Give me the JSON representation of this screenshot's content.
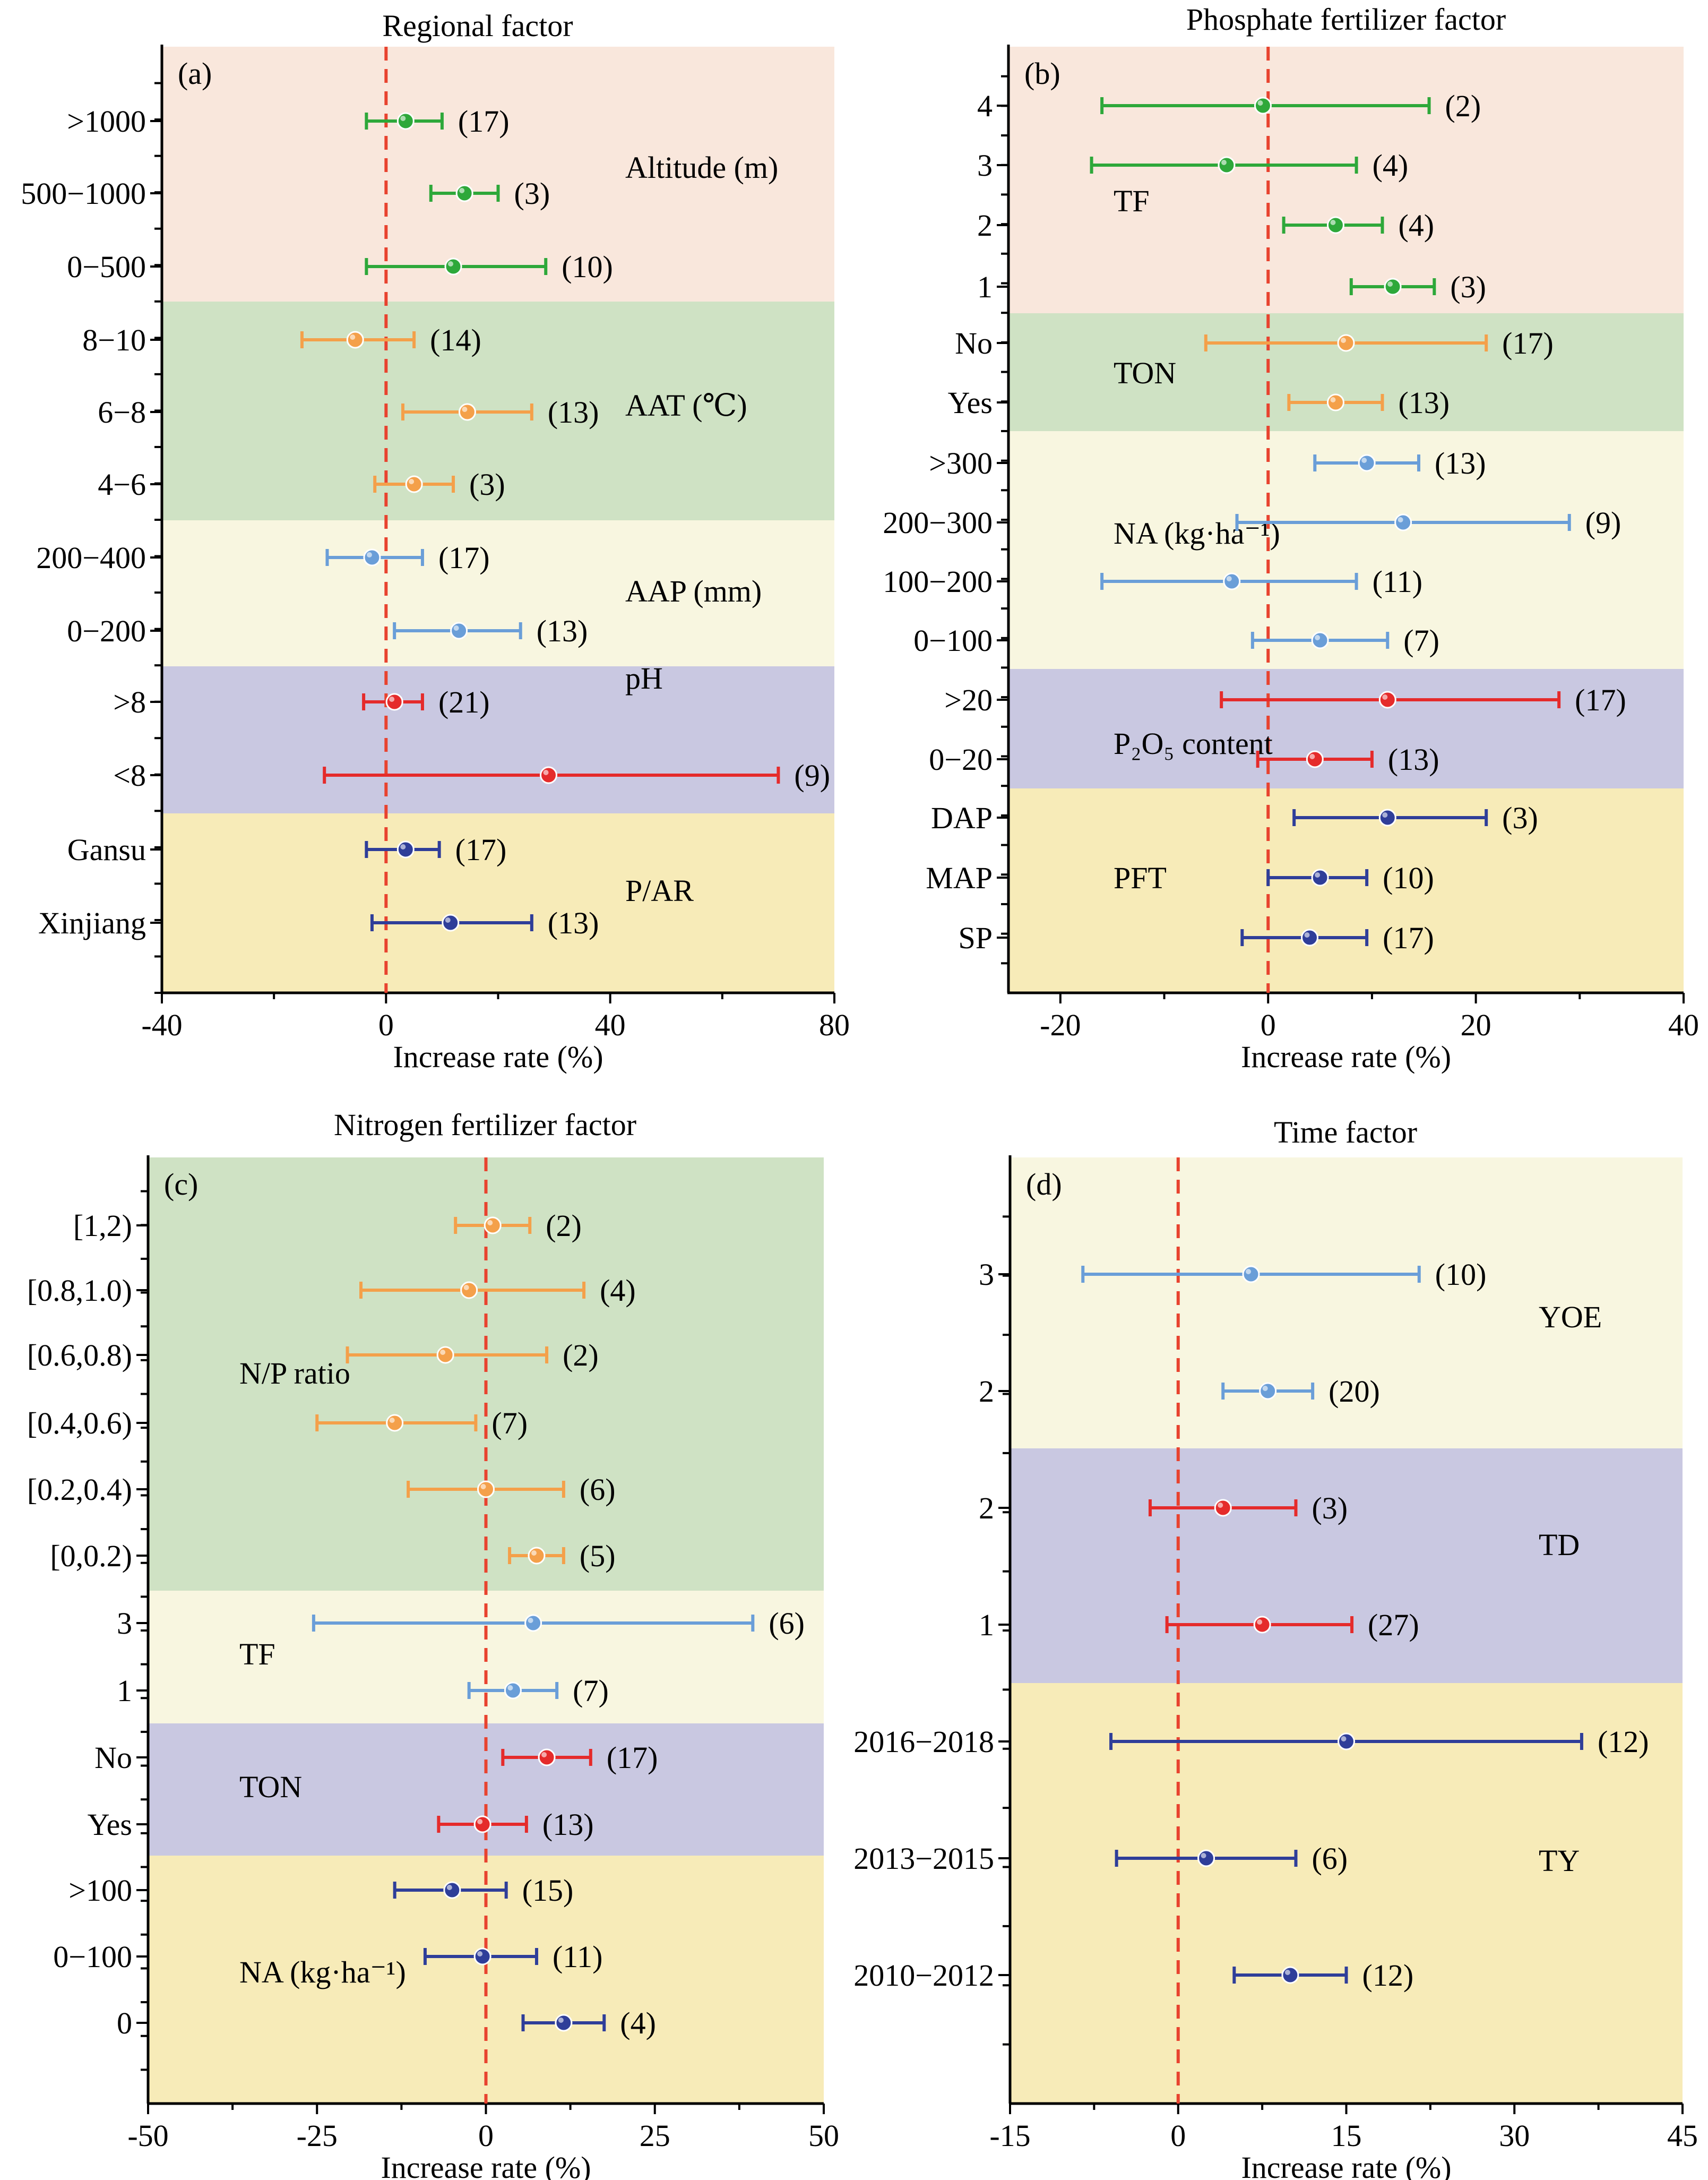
{
  "chart_data": [
    {
      "id": "a",
      "type": "forest",
      "title": "Regional factor",
      "panel_label": "(a)",
      "xlabel": "Increase rate (%)",
      "xlim": [
        -40,
        80
      ],
      "xticks": [
        "-40",
        "0",
        "40",
        "80"
      ],
      "xtick_values": [
        -40,
        0,
        40,
        80
      ],
      "groups": [
        {
          "name": "Altitude (m)",
          "band": "#f9e7dc",
          "color": "#2ea83a",
          "items": [
            {
              "label": ">1000",
              "mean": 3.5,
              "lo": -3.5,
              "hi": 10,
              "n": "(17)"
            },
            {
              "label": "500−1000",
              "mean": 14,
              "lo": 8,
              "hi": 20,
              "n": "(3)"
            },
            {
              "label": "0−500",
              "mean": 12,
              "lo": -3.5,
              "hi": 28.5,
              "n": "(10)"
            }
          ]
        },
        {
          "name": "AAT (℃)",
          "band": "#cfe2c4",
          "color": "#f4a04a",
          "items": [
            {
              "label": "8−10",
              "mean": -5.5,
              "lo": -15,
              "hi": 5,
              "n": "(14)"
            },
            {
              "label": "6−8",
              "mean": 14.5,
              "lo": 3,
              "hi": 26,
              "n": "(13)"
            },
            {
              "label": "4−6",
              "mean": 5,
              "lo": -2,
              "hi": 12,
              "n": "(3)"
            }
          ]
        },
        {
          "name": "AAP (mm)",
          "band": "#f8f6e0",
          "color": "#6a9ed8",
          "items": [
            {
              "label": "200−400",
              "mean": -2.5,
              "lo": -10.5,
              "hi": 6.5,
              "n": "(17)"
            },
            {
              "label": "0−200",
              "mean": 13,
              "lo": 1.5,
              "hi": 24,
              "n": "(13)"
            }
          ]
        },
        {
          "name": "pH",
          "band": "#c9c8e1",
          "color": "#e52b2b",
          "items": [
            {
              "label": ">8",
              "mean": 1.5,
              "lo": -4,
              "hi": 6.5,
              "n": "(21)"
            },
            {
              "label": "<8",
              "mean": 29,
              "lo": -11,
              "hi": 70,
              "n": "(9)"
            }
          ]
        },
        {
          "name": "P/AR",
          "band": "#f7ebb8",
          "color": "#2f3e99",
          "items": [
            {
              "label": "Gansu",
              "mean": 3.5,
              "lo": -3.5,
              "hi": 9.5,
              "n": "(17)"
            },
            {
              "label": "Xinjiang",
              "mean": 11.5,
              "lo": -2.5,
              "hi": 26,
              "n": "(13)"
            }
          ]
        }
      ]
    },
    {
      "id": "b",
      "type": "forest",
      "title": "Phosphate fertilizer factor",
      "panel_label": "(b)",
      "xlabel": "Increase rate (%)",
      "xlim": [
        -25,
        40
      ],
      "xticks": [
        "-20",
        "0",
        "20",
        "40"
      ],
      "xtick_values": [
        -20,
        0,
        20,
        40
      ],
      "groups": [
        {
          "name": "TF",
          "band": "#f9e7dc",
          "color": "#2ea83a",
          "items": [
            {
              "label": "4",
              "mean": -0.5,
              "lo": -16,
              "hi": 15.5,
              "n": "(2)"
            },
            {
              "label": "3",
              "mean": -4,
              "lo": -17,
              "hi": 8.5,
              "n": "(4)"
            },
            {
              "label": "2",
              "mean": 6.5,
              "lo": 1.5,
              "hi": 11,
              "n": "(4)"
            },
            {
              "label": "1",
              "mean": 12,
              "lo": 8,
              "hi": 16,
              "n": "(3)"
            }
          ]
        },
        {
          "name": "TON",
          "band": "#cfe2c4",
          "color": "#f4a04a",
          "items": [
            {
              "label": "No",
              "mean": 7.5,
              "lo": -6,
              "hi": 21,
              "n": "(17)"
            },
            {
              "label": "Yes",
              "mean": 6.5,
              "lo": 2,
              "hi": 11,
              "n": "(13)"
            }
          ]
        },
        {
          "name": "NA (kg·ha⁻¹)",
          "band": "#f8f6e0",
          "color": "#6a9ed8",
          "items": [
            {
              "label": ">300",
              "mean": 9.5,
              "lo": 4.5,
              "hi": 14.5,
              "n": "(13)"
            },
            {
              "label": "200−300",
              "mean": 13,
              "lo": -3,
              "hi": 29,
              "n": "(9)"
            },
            {
              "label": "100−200",
              "mean": -3.5,
              "lo": -16,
              "hi": 8.5,
              "n": "(11)"
            },
            {
              "label": "0−100",
              "mean": 5,
              "lo": -1.5,
              "hi": 11.5,
              "n": "(7)"
            }
          ]
        },
        {
          "name": "P₂O₅ content",
          "band": "#c9c8e1",
          "color": "#e52b2b",
          "items": [
            {
              "label": ">20",
              "mean": 11.5,
              "lo": -4.5,
              "hi": 28,
              "n": "(17)"
            },
            {
              "label": "0−20",
              "mean": 4.5,
              "lo": -1,
              "hi": 10,
              "n": "(13)"
            }
          ]
        },
        {
          "name": "PFT",
          "band": "#f7ebb8",
          "color": "#2f3e99",
          "items": [
            {
              "label": "DAP",
              "mean": 11.5,
              "lo": 2.5,
              "hi": 21,
              "n": "(3)"
            },
            {
              "label": "MAP",
              "mean": 5,
              "lo": 0,
              "hi": 9.5,
              "n": "(10)"
            },
            {
              "label": "SP",
              "mean": 4,
              "lo": -2.5,
              "hi": 9.5,
              "n": "(17)"
            }
          ]
        }
      ]
    },
    {
      "id": "c",
      "type": "forest",
      "title": "Nitrogen fertilizer factor",
      "panel_label": "(c)",
      "xlabel": "Increase rate (%)",
      "xlim": [
        -50,
        50
      ],
      "xticks": [
        "-50",
        "-25",
        "0",
        "25",
        "50"
      ],
      "xtick_values": [
        -50,
        -25,
        0,
        25,
        50
      ],
      "groups": [
        {
          "name": "N/P ratio",
          "band": "#cfe2c4",
          "color": "#f4a04a",
          "items": [
            {
              "label": "[1,2)",
              "mean": 1,
              "lo": -4.5,
              "hi": 6.5,
              "n": "(2)"
            },
            {
              "label": "[0.8,1.0)",
              "mean": -2.5,
              "lo": -18.5,
              "hi": 14.5,
              "n": "(4)"
            },
            {
              "label": "[0.6,0.8)",
              "mean": -6,
              "lo": -20.5,
              "hi": 9,
              "n": "(2)"
            },
            {
              "label": "[0.4,0.6)",
              "mean": -13.5,
              "lo": -25,
              "hi": -1.5,
              "n": "(7)"
            },
            {
              "label": "[0.2,0.4)",
              "mean": 0,
              "lo": -11.5,
              "hi": 11.5,
              "n": "(6)"
            },
            {
              "label": "[0,0.2)",
              "mean": 7.5,
              "lo": 3.5,
              "hi": 11.5,
              "n": "(5)"
            }
          ]
        },
        {
          "name": "TF",
          "band": "#f8f6e0",
          "color": "#6a9ed8",
          "items": [
            {
              "label": "3",
              "mean": 7,
              "lo": -25.5,
              "hi": 39.5,
              "n": "(6)"
            },
            {
              "label": "1",
              "mean": 4,
              "lo": -2.5,
              "hi": 10.5,
              "n": "(7)"
            }
          ]
        },
        {
          "name": "TON",
          "band": "#c9c8e1",
          "color": "#e52b2b",
          "items": [
            {
              "label": "No",
              "mean": 9,
              "lo": 2.5,
              "hi": 15.5,
              "n": "(17)"
            },
            {
              "label": "Yes",
              "mean": -0.5,
              "lo": -7,
              "hi": 6,
              "n": "(13)"
            }
          ]
        },
        {
          "name": "NA (kg·ha⁻¹)",
          "band": "#f7ebb8",
          "color": "#2f3e99",
          "items": [
            {
              "label": ">100",
              "mean": -5,
              "lo": -13.5,
              "hi": 3,
              "n": "(15)"
            },
            {
              "label": "0−100",
              "mean": -0.5,
              "lo": -9,
              "hi": 7.5,
              "n": "(11)"
            },
            {
              "label": "0",
              "mean": 11.5,
              "lo": 5.5,
              "hi": 17.5,
              "n": "(4)"
            }
          ]
        }
      ]
    },
    {
      "id": "d",
      "type": "forest",
      "title": "Time factor",
      "panel_label": "(d)",
      "xlabel": "Increase rate (%)",
      "xlim": [
        -15,
        45
      ],
      "xticks": [
        "-15",
        "0",
        "15",
        "30",
        "45"
      ],
      "xtick_values": [
        -15,
        0,
        15,
        30,
        45
      ],
      "groups": [
        {
          "name": "YOE",
          "band": "#f8f6e0",
          "color": "#6a9ed8",
          "items": [
            {
              "label": "3",
              "mean": 6.5,
              "lo": -8.5,
              "hi": 21.5,
              "n": "(10)"
            },
            {
              "label": "2",
              "mean": 8,
              "lo": 4,
              "hi": 12,
              "n": "(20)"
            }
          ]
        },
        {
          "name": "TD",
          "band": "#c9c8e1",
          "color": "#e52b2b",
          "items": [
            {
              "label": "2",
              "mean": 4,
              "lo": -2.5,
              "hi": 10.5,
              "n": "(3)"
            },
            {
              "label": "1",
              "mean": 7.5,
              "lo": -1,
              "hi": 15.5,
              "n": "(27)"
            }
          ]
        },
        {
          "name": "TY",
          "band": "#f7ebb8",
          "color": "#2f3e99",
          "items": [
            {
              "label": "2016−2018",
              "mean": 15,
              "lo": -6,
              "hi": 36,
              "n": "(12)"
            },
            {
              "label": "2013−2015",
              "mean": 2.5,
              "lo": -5.5,
              "hi": 10.5,
              "n": "(6)"
            },
            {
              "label": "2010−2012",
              "mean": 10,
              "lo": 5,
              "hi": 15,
              "n": "(12)"
            }
          ]
        }
      ]
    }
  ]
}
